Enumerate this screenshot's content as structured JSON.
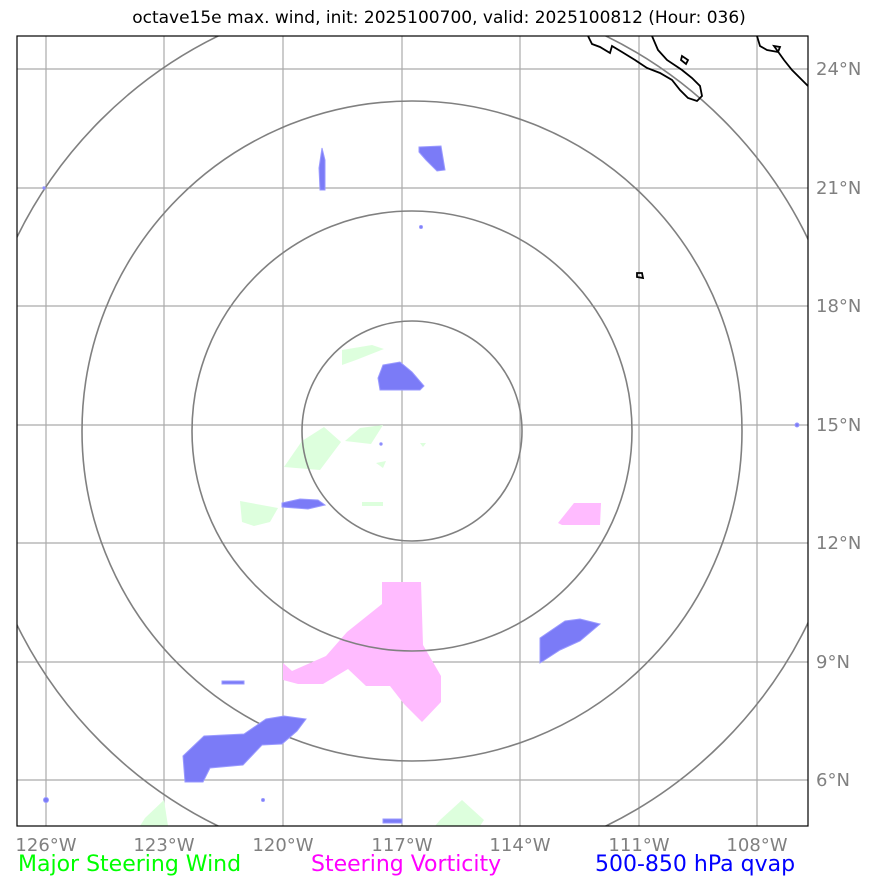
{
  "title": "octave15e max. wind, init: 2025100700, valid: 2025100812 (Hour: 036)",
  "map": {
    "lon_ticks": [
      "126°W",
      "123°W",
      "120°W",
      "117°W",
      "114°W",
      "111°W",
      "108°W"
    ],
    "lat_ticks": [
      "24°N",
      "21°N",
      "18°N",
      "15°N",
      "12°N",
      "9°N",
      "6°N"
    ],
    "center": {
      "lon": -117,
      "lat": 15
    },
    "colors": {
      "grid": "#aaaaaa",
      "range_rings": "#808080",
      "coastline": "#000000",
      "steering_wind": "#ddffdd",
      "steering_vorticity": "#ffbbff",
      "qvap": "#7b7bf7"
    }
  },
  "legend": {
    "wind": "Major Steering Wind",
    "vorticity": "Steering Vorticity",
    "qvap": "500-850 hPa qvap"
  }
}
